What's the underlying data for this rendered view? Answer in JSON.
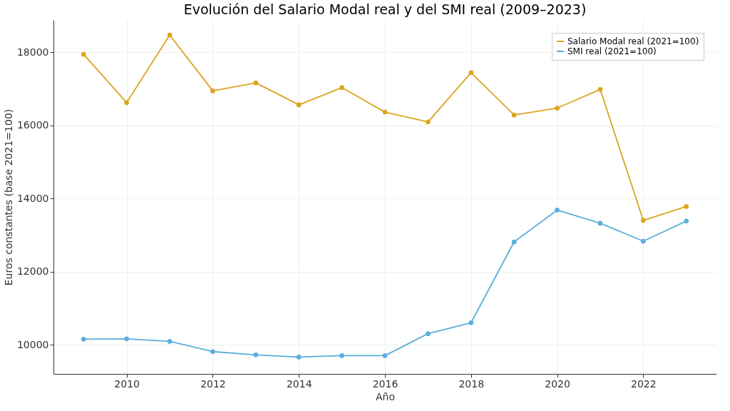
{
  "chart_data": {
    "type": "line",
    "title": "Evolución del Salario Modal real y del SMI real (2009–2023)",
    "xlabel": "Año",
    "ylabel": "Euros constantes (base 2021=100)",
    "x": [
      2009,
      2010,
      2011,
      2012,
      2013,
      2014,
      2015,
      2016,
      2017,
      2018,
      2019,
      2020,
      2021,
      2022,
      2023
    ],
    "series": [
      {
        "name": "Salario Modal real (2021=100)",
        "color": "#dba520",
        "values": [
          17940,
          16620,
          18470,
          16940,
          17160,
          16560,
          17030,
          16360,
          16090,
          17440,
          16280,
          16470,
          16980,
          13400,
          13780
        ]
      },
      {
        "name": "SMI real (2021=100)",
        "color": "#5aafdc",
        "values": [
          10150,
          10160,
          10090,
          9810,
          9720,
          9660,
          9700,
          9700,
          10300,
          10600,
          12810,
          13680,
          13320,
          12830,
          13380
        ]
      }
    ],
    "xlim": [
      2008.3,
      2023.7
    ],
    "xticks": [
      2010,
      2012,
      2014,
      2016,
      2018,
      2020,
      2022
    ],
    "ylim": [
      9200,
      18880
    ],
    "yticks": [
      10000,
      12000,
      14000,
      16000,
      18000
    ],
    "grid": true,
    "legend": "top right",
    "marker": "circle",
    "line_style": "solid"
  }
}
